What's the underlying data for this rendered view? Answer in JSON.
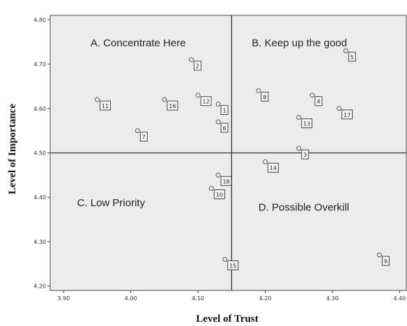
{
  "chart_data": {
    "type": "scatter",
    "title": "",
    "xlabel": "Level of Trust",
    "ylabel": "Level of Importance",
    "xlim": [
      3.88,
      4.41
    ],
    "ylim": [
      4.19,
      4.81
    ],
    "xticks": [
      "3.90",
      "4.00",
      "4.10",
      "4.20",
      "4.30",
      "4.40"
    ],
    "yticks": [
      "4.20",
      "4.30",
      "4.40",
      "4.50",
      "4.60",
      "4.70",
      "4.80"
    ],
    "xtick_values": [
      3.9,
      4.0,
      4.1,
      4.2,
      4.3,
      4.4
    ],
    "ytick_values": [
      4.2,
      4.3,
      4.4,
      4.5,
      4.6,
      4.7,
      4.8
    ],
    "reference_lines": {
      "x": 4.15,
      "y": 4.5
    },
    "quadrants": [
      {
        "label": "A. Concentrate Here",
        "x": 3.94,
        "y": 4.74
      },
      {
        "label": "B. Keep up the good",
        "x": 4.18,
        "y": 4.74
      },
      {
        "label": "C. Low Priority",
        "x": 3.92,
        "y": 4.38
      },
      {
        "label": "D. Possible Overkill",
        "x": 4.19,
        "y": 4.37
      }
    ],
    "points": [
      {
        "label": "1",
        "x": 4.13,
        "y": 4.61
      },
      {
        "label": "2",
        "x": 4.09,
        "y": 4.71
      },
      {
        "label": "3",
        "x": 4.25,
        "y": 4.51
      },
      {
        "label": "4",
        "x": 4.27,
        "y": 4.63
      },
      {
        "label": "5",
        "x": 4.32,
        "y": 4.73
      },
      {
        "label": "6",
        "x": 4.13,
        "y": 4.57
      },
      {
        "label": "7",
        "x": 4.01,
        "y": 4.55
      },
      {
        "label": "8",
        "x": 4.19,
        "y": 4.64
      },
      {
        "label": "9",
        "x": 4.37,
        "y": 4.27
      },
      {
        "label": "10",
        "x": 4.12,
        "y": 4.42
      },
      {
        "label": "11",
        "x": 3.95,
        "y": 4.62
      },
      {
        "label": "12",
        "x": 4.1,
        "y": 4.63
      },
      {
        "label": "13",
        "x": 4.25,
        "y": 4.58
      },
      {
        "label": "14",
        "x": 4.2,
        "y": 4.48
      },
      {
        "label": "15",
        "x": 4.14,
        "y": 4.26
      },
      {
        "label": "16",
        "x": 4.05,
        "y": 4.62
      },
      {
        "label": "17",
        "x": 4.31,
        "y": 4.6
      },
      {
        "label": "18",
        "x": 4.13,
        "y": 4.45
      }
    ],
    "grid": false,
    "legend": "none",
    "colors": {
      "background": "#ececec",
      "frame": "#4a4a4a",
      "marker": "#555555"
    }
  }
}
